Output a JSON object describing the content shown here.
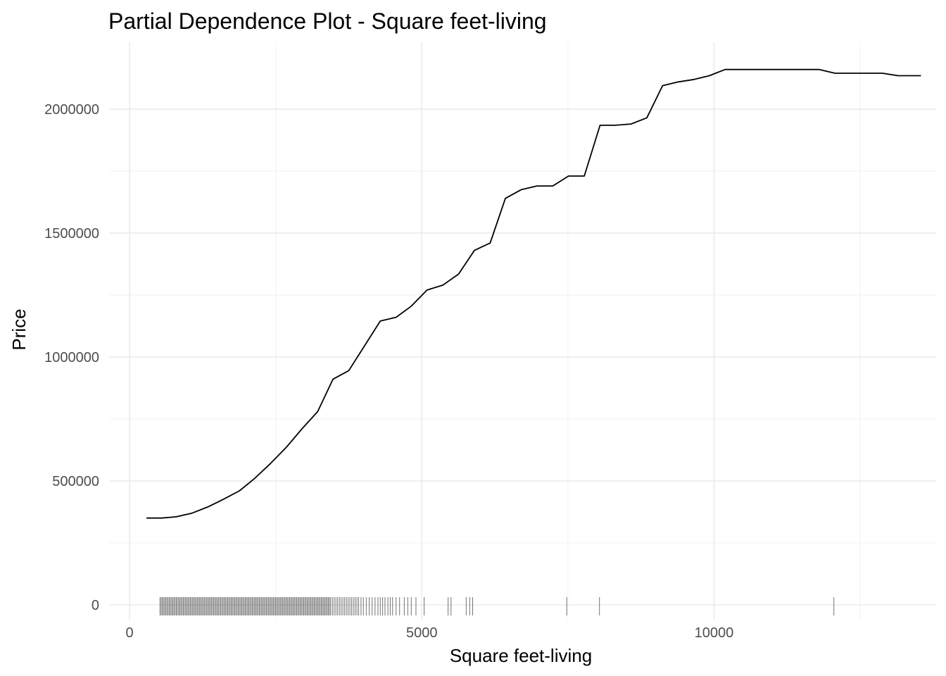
{
  "chart_data": {
    "type": "line",
    "title": "Partial Dependence Plot - Square feet-living",
    "xlabel": "Square feet-living",
    "ylabel": "Price",
    "xlim": [
      -350,
      13800
    ],
    "ylim": [
      -60000,
      2270000
    ],
    "x_ticks": [
      0,
      5000,
      10000
    ],
    "x_tick_labels": [
      "0",
      "5000",
      "10000"
    ],
    "x_minor_ticks": [
      2500,
      7500,
      12500
    ],
    "y_ticks": [
      0,
      500000,
      1000000,
      1500000,
      2000000
    ],
    "y_tick_labels": [
      "0",
      "500000",
      "1000000",
      "1500000",
      "2000000"
    ],
    "y_minor_ticks": [
      250000,
      750000,
      1250000,
      1750000
    ],
    "grid": true,
    "line_color": "#000000",
    "series": [
      {
        "x": [
          290,
          550,
          800,
          1070,
          1340,
          1600,
          1880,
          2140,
          2410,
          2680,
          2950,
          3220,
          3480,
          3750,
          4020,
          4290,
          4560,
          4820,
          5090,
          5360,
          5630,
          5900,
          6170,
          6430,
          6700,
          6970,
          7240,
          7510,
          7780,
          8050,
          8310,
          8580,
          8850,
          9120,
          9390,
          9660,
          9920,
          10190,
          10460,
          10730,
          11000,
          11270,
          11540,
          11800,
          12070,
          12340,
          12610,
          12880,
          13150,
          13540
        ],
        "y": [
          350000,
          350000,
          355000,
          370000,
          395000,
          425000,
          460000,
          510000,
          570000,
          635000,
          710000,
          780000,
          910000,
          945000,
          1045000,
          1145000,
          1160000,
          1205000,
          1270000,
          1290000,
          1335000,
          1430000,
          1460000,
          1640000,
          1675000,
          1690000,
          1690000,
          1730000,
          1730000,
          1935000,
          1935000,
          1940000,
          1965000,
          2095000,
          2110000,
          2120000,
          2135000,
          2160000,
          2160000,
          2160000,
          2160000,
          2160000,
          2160000,
          2160000,
          2145000,
          2145000,
          2145000,
          2145000,
          2135000,
          2135000
        ]
      }
    ],
    "rug_x": [
      520,
      540,
      560,
      580,
      600,
      620,
      640,
      660,
      680,
      700,
      720,
      740,
      760,
      780,
      800,
      820,
      840,
      860,
      880,
      900,
      920,
      940,
      960,
      980,
      1000,
      1020,
      1040,
      1060,
      1080,
      1100,
      1120,
      1140,
      1160,
      1180,
      1200,
      1220,
      1240,
      1260,
      1280,
      1300,
      1320,
      1340,
      1360,
      1380,
      1400,
      1420,
      1440,
      1460,
      1480,
      1500,
      1520,
      1540,
      1560,
      1580,
      1600,
      1620,
      1640,
      1660,
      1680,
      1700,
      1720,
      1740,
      1760,
      1780,
      1800,
      1820,
      1840,
      1860,
      1880,
      1900,
      1920,
      1940,
      1960,
      1980,
      2000,
      2020,
      2040,
      2060,
      2080,
      2100,
      2120,
      2140,
      2160,
      2180,
      2200,
      2220,
      2240,
      2260,
      2280,
      2300,
      2320,
      2340,
      2360,
      2380,
      2400,
      2420,
      2440,
      2460,
      2480,
      2500,
      2520,
      2540,
      2560,
      2580,
      2600,
      2620,
      2640,
      2660,
      2680,
      2700,
      2720,
      2740,
      2760,
      2780,
      2800,
      2820,
      2840,
      2860,
      2880,
      2900,
      2920,
      2940,
      2960,
      2980,
      3000,
      3020,
      3040,
      3060,
      3080,
      3100,
      3120,
      3140,
      3160,
      3180,
      3200,
      3220,
      3240,
      3260,
      3280,
      3300,
      3320,
      3340,
      3360,
      3380,
      3400,
      3420,
      3440,
      3470,
      3500,
      3530,
      3560,
      3590,
      3620,
      3650,
      3680,
      3710,
      3740,
      3770,
      3800,
      3830,
      3860,
      3890,
      3920,
      3960,
      4000,
      4050,
      4100,
      4150,
      4200,
      4250,
      4290,
      4330,
      4370,
      4420,
      4460,
      4500,
      4560,
      4620,
      4700,
      4760,
      4820,
      4900,
      5040,
      5450,
      5500,
      5760,
      5820,
      5870,
      7480,
      8040,
      12050
    ]
  }
}
